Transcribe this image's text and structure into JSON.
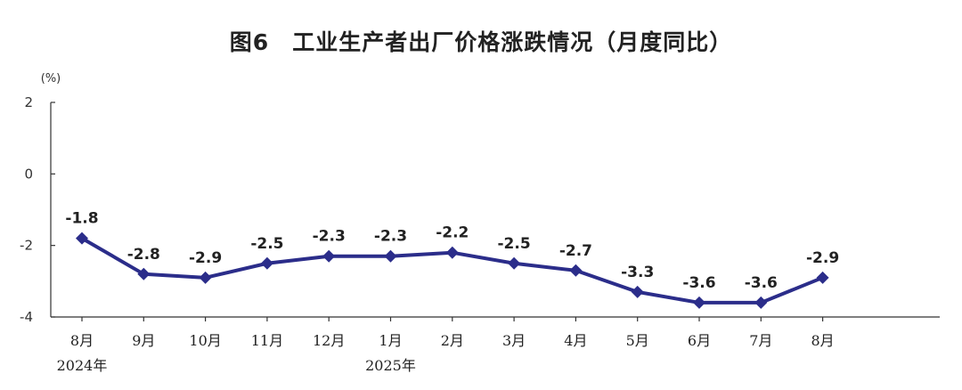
{
  "chart_data": {
    "type": "line",
    "title": "图6　工业生产者出厂价格涨跌情况（月度同比）",
    "y_unit": "(%)",
    "ylim": [
      -4,
      2
    ],
    "yticks": [
      2,
      0,
      -2,
      -4
    ],
    "grid": false,
    "categories": [
      "8月",
      "9月",
      "10月",
      "11月",
      "12月",
      "1月",
      "2月",
      "3月",
      "4月",
      "5月",
      "6月",
      "7月",
      "8月"
    ],
    "year_labels": [
      {
        "category_index": 0,
        "text": "2024年"
      },
      {
        "category_index": 5,
        "text": "2025年"
      }
    ],
    "series": [
      {
        "values": [
          -1.8,
          -2.8,
          -2.9,
          -2.5,
          -2.3,
          -2.3,
          -2.2,
          -2.5,
          -2.7,
          -3.3,
          -3.6,
          -3.6,
          -2.9
        ],
        "labels": [
          "-1.8",
          "-2.8",
          "-2.9",
          "-2.5",
          "-2.3",
          "-2.3",
          "-2.2",
          "-2.5",
          "-2.7",
          "-3.3",
          "-3.6",
          "-3.6",
          "-2.9"
        ],
        "color": "#2b2d8a"
      }
    ]
  }
}
